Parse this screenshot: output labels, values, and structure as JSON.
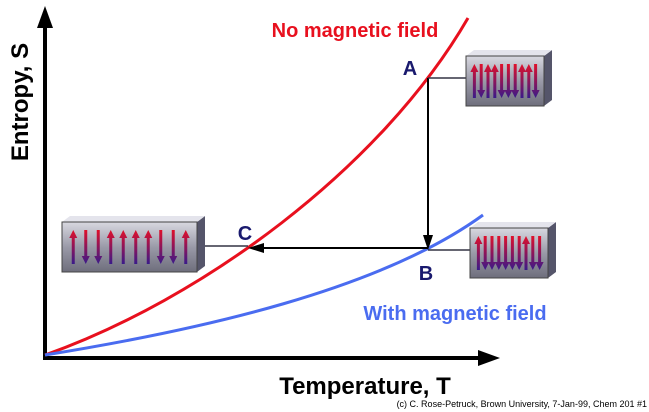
{
  "axes": {
    "y_label": "Entropy, S",
    "x_label": "Temperature, T"
  },
  "curves": {
    "no_field": "No magnetic field",
    "with_field": "With magnetic field"
  },
  "points": {
    "a": "A",
    "b": "B",
    "c": "C"
  },
  "credit": "(c) C. Rose-Petruck, Brown University, 7-Jan-99, Chem 201 #1"
}
